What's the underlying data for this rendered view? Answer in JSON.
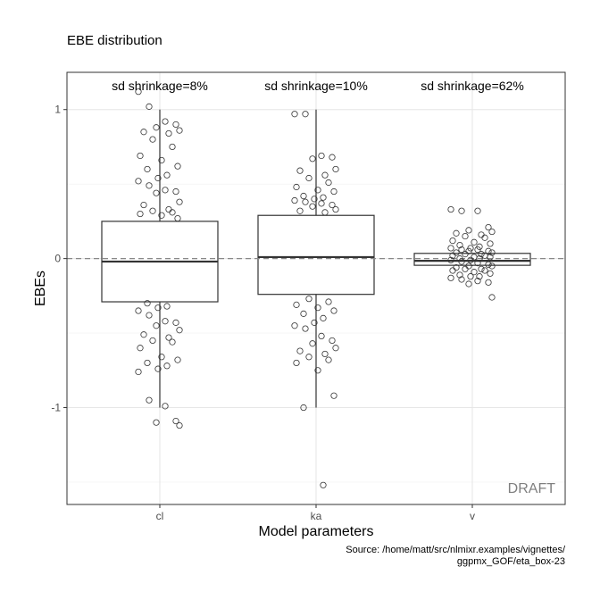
{
  "chart_data": {
    "type": "box",
    "title": "EBE distribution",
    "xlabel": "Model parameters",
    "ylabel": "EBEs",
    "ylim": [
      -1.65,
      1.25
    ],
    "yticks": [
      -1,
      0,
      1
    ],
    "grid": true,
    "categories": [
      "cl",
      "ka",
      "v"
    ],
    "shrinkage_labels": [
      "sd shrinkage=8%",
      "sd shrinkage=10%",
      "sd shrinkage=62%"
    ],
    "boxes": [
      {
        "category": "cl",
        "whisker_low": -1.0,
        "q1": -0.29,
        "median": -0.02,
        "q3": 0.25,
        "whisker_high": 1.0
      },
      {
        "category": "ka",
        "whisker_low": -1.0,
        "q1": -0.24,
        "median": 0.01,
        "q3": 0.29,
        "whisker_high": 1.0
      },
      {
        "category": "v",
        "whisker_low": -0.05,
        "q1": -0.045,
        "median": -0.015,
        "q3": 0.035,
        "whisker_high": 0.04
      }
    ],
    "points": {
      "cl": [
        1.12,
        1.02,
        0.92,
        0.9,
        0.88,
        0.86,
        0.85,
        0.84,
        0.8,
        0.75,
        0.69,
        0.66,
        0.62,
        0.6,
        0.56,
        0.54,
        0.52,
        0.49,
        0.46,
        0.45,
        0.44,
        0.38,
        0.36,
        0.33,
        0.32,
        0.31,
        0.3,
        0.29,
        0.27,
        -0.3,
        -0.32,
        -0.33,
        -0.35,
        -0.38,
        -0.42,
        -0.43,
        -0.45,
        -0.48,
        -0.51,
        -0.53,
        -0.55,
        -0.56,
        -0.6,
        -0.66,
        -0.68,
        -0.7,
        -0.72,
        -0.74,
        -0.76,
        -0.95,
        -0.99,
        -1.09,
        -1.1,
        -1.12
      ],
      "ka": [
        0.97,
        0.97,
        0.69,
        0.68,
        0.67,
        0.6,
        0.59,
        0.56,
        0.54,
        0.51,
        0.48,
        0.46,
        0.45,
        0.42,
        0.41,
        0.4,
        0.39,
        0.38,
        0.37,
        0.36,
        0.35,
        0.33,
        0.32,
        0.31,
        -0.27,
        -0.29,
        -0.31,
        -0.33,
        -0.35,
        -0.37,
        -0.4,
        -0.43,
        -0.45,
        -0.47,
        -0.52,
        -0.55,
        -0.57,
        -0.6,
        -0.62,
        -0.64,
        -0.66,
        -0.68,
        -0.7,
        -0.75,
        -0.92,
        -1.0,
        -1.52
      ],
      "v": [
        0.33,
        0.32,
        0.32,
        0.21,
        0.19,
        0.18,
        0.17,
        0.16,
        0.15,
        0.14,
        0.12,
        0.11,
        0.1,
        0.09,
        0.08,
        0.07,
        0.07,
        0.06,
        0.06,
        0.05,
        0.05,
        0.04,
        0.04,
        0.03,
        0.03,
        0.02,
        0.02,
        0.01,
        0.01,
        0.0,
        0.0,
        -0.01,
        -0.01,
        -0.02,
        -0.03,
        -0.04,
        -0.05,
        -0.05,
        -0.06,
        -0.07,
        -0.07,
        -0.08,
        -0.08,
        -0.09,
        -0.1,
        -0.11,
        -0.12,
        -0.12,
        -0.13,
        -0.14,
        -0.15,
        -0.16,
        -0.17,
        -0.26
      ]
    },
    "reference_line": 0,
    "watermark": "DRAFT",
    "caption_lines": [
      "Source: /home/matt/src/nlmixr.examples/vignettes/",
      "ggpmx_GOF/eta_box-23"
    ]
  }
}
